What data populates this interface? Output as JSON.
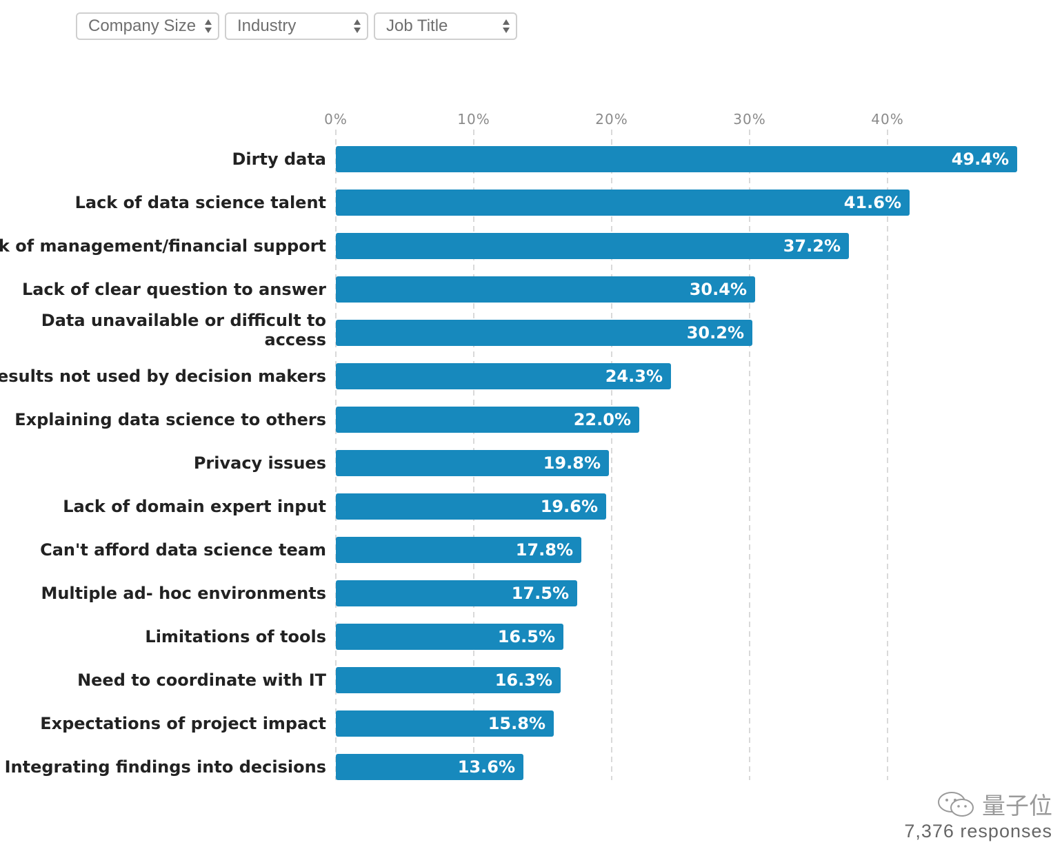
{
  "filters": [
    {
      "label": "Company Size"
    },
    {
      "label": "Industry"
    },
    {
      "label": "Job Title"
    }
  ],
  "chart_data": {
    "type": "bar",
    "orientation": "horizontal",
    "categories": [
      "Dirty data",
      "Lack of data science talent",
      "Lack of management/financial support",
      "Lack of clear question to answer",
      "Data unavailable or difficult to access",
      "Results not used by decision makers",
      "Explaining data science to others",
      "Privacy issues",
      "Lack of domain expert input",
      "Can't afford data science team",
      "Multiple ad- hoc environments",
      "Limitations of tools",
      "Need to coordinate with IT",
      "Expectations of project impact",
      "Integrating findings into decisions"
    ],
    "values": [
      49.4,
      41.6,
      37.2,
      30.4,
      30.2,
      24.3,
      22.0,
      19.8,
      19.6,
      17.8,
      17.5,
      16.5,
      16.3,
      15.8,
      13.6
    ],
    "value_labels": [
      "49.4%",
      "41.6%",
      "37.2%",
      "30.4%",
      "30.2%",
      "24.3%",
      "22.0%",
      "19.8%",
      "19.6%",
      "17.8%",
      "17.5%",
      "16.5%",
      "16.3%",
      "15.8%",
      "13.6%"
    ],
    "x_ticks": [
      "0%",
      "10%",
      "20%",
      "30%",
      "40%"
    ],
    "x_tick_values": [
      0,
      10,
      20,
      30,
      40
    ],
    "xlim": [
      0,
      50
    ],
    "grid": true,
    "bar_color": "#1789bd"
  },
  "watermark": {
    "text": "量子位",
    "icon": "wechat-icon"
  },
  "footer": {
    "responses": "7,376 responses"
  }
}
